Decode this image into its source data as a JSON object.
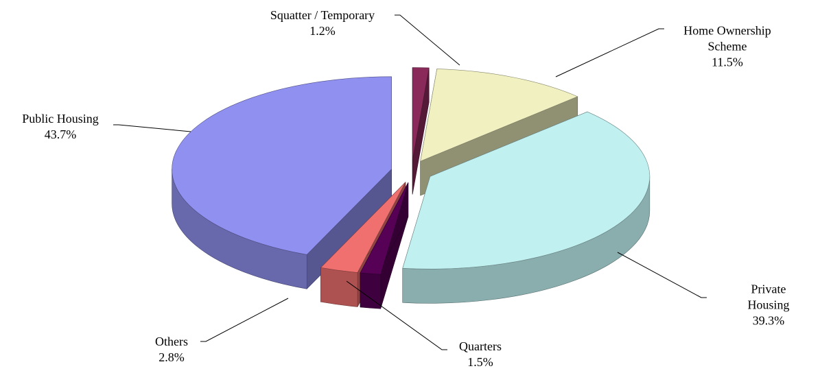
{
  "chart_data": {
    "type": "pie",
    "categories": [
      "Squatter / Temporary",
      "Home Ownership Scheme",
      "Private Housing",
      "Quarters",
      "Others",
      "Public Housing"
    ],
    "values": [
      1.2,
      11.5,
      39.3,
      1.5,
      2.8,
      43.7
    ],
    "value_labels": [
      "1.2%",
      "11.5%",
      "39.3%",
      "1.5%",
      "2.8%",
      "43.7%"
    ],
    "colors": [
      "#8a2a5a",
      "#f0f0c0",
      "#c0f0f0",
      "#560056",
      "#f07070",
      "#9090f0"
    ]
  }
}
